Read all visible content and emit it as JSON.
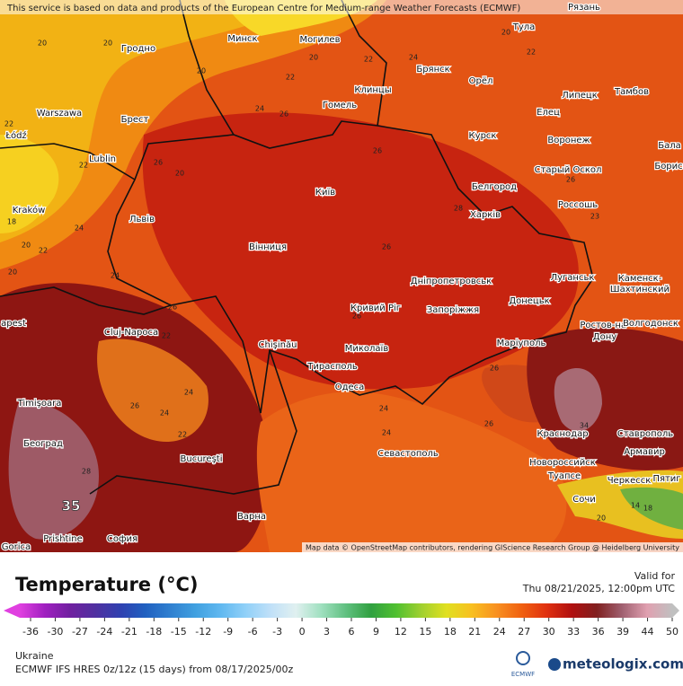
{
  "map": {
    "notice": "This service is based on data and products of the European Centre for Medium-range Weather Forecasts (ECMWF)",
    "attribution": "Map data © OpenStreetMap contributors, rendering GIScience Research Group @ Heidelberg University",
    "cities": [
      "Минск",
      "Могилев",
      "Гродно",
      "Брянск",
      "Орёл",
      "Тула",
      "Рязань",
      "Клинцы",
      "Warszawa",
      "Брест",
      "Гомель",
      "Липецк",
      "Тамбов",
      "Łódź",
      "Lublin",
      "Курск",
      "Елец",
      "Воронеж",
      "Бала",
      "Старый Оскол",
      "Борис",
      "Белгород",
      "Kraków",
      "Київ",
      "Харків",
      "Россошь",
      "Львів",
      "Вінниця",
      "Каменск-",
      "Шахтинский",
      "Луганськ",
      "Дніпропетровськ",
      "Донецьк",
      "Ростов-на-",
      "Дону",
      "Волгодонск",
      "Кривий Ріг",
      "Запоріжжя",
      "Cluj-Napoca",
      "Chişinău",
      "Миколаїв",
      "Маріуполь",
      "Тирасполь",
      "Одеса",
      "Timişoara",
      "Краснодар",
      "Ставрополь",
      "Београд",
      "Армавир",
      "Севастополь",
      "Новороссийск",
      "Bucureşti",
      "Туапсе",
      "Черкесск",
      "Пятиг",
      "Сочи",
      "Варна",
      "Prishtine",
      "София",
      "Gorica",
      "apest"
    ],
    "isotherm_labels": [
      20,
      20,
      20,
      22,
      20,
      22,
      24,
      20,
      22,
      22,
      24,
      26,
      22,
      26,
      20,
      26,
      28,
      26,
      23,
      18,
      24,
      20,
      22,
      26,
      26,
      24,
      26,
      22,
      24,
      24,
      22,
      26,
      26,
      24,
      24,
      26,
      34,
      20,
      14,
      18,
      20,
      28
    ],
    "highlight_label": 35
  },
  "legend": {
    "title": "Temperature (°C)",
    "valid_label": "Valid for",
    "valid_time": "Thu 08/21/2025, 12:00pm UTC",
    "region": "Ukraine",
    "model": "ECMWF IFS HRES 0z/12z (15 days) from 08/17/2025/00z",
    "ecmwf_logo": "ECMWF",
    "brand": "meteologix.com",
    "colorbar": {
      "ticks": [
        -36,
        -30,
        -27,
        -24,
        -21,
        -18,
        -15,
        -12,
        -9,
        -6,
        -3,
        0,
        3,
        6,
        9,
        12,
        15,
        18,
        21,
        24,
        27,
        30,
        33,
        36,
        39,
        44,
        50
      ],
      "colors": [
        "#e040e0",
        "#a020c0",
        "#7020a0",
        "#5030a0",
        "#3040b0",
        "#2060c0",
        "#3080d0",
        "#40a0e0",
        "#60b8f0",
        "#90d0f8",
        "#c0e0f8",
        "#e0f0f0",
        "#a0e0c0",
        "#60c080",
        "#30a040",
        "#50c030",
        "#a0d030",
        "#e0e020",
        "#f8c020",
        "#f89020",
        "#f06010",
        "#e03010",
        "#b01010",
        "#802020",
        "#a06070",
        "#e0a0b0",
        "#c0c0c0"
      ]
    }
  }
}
